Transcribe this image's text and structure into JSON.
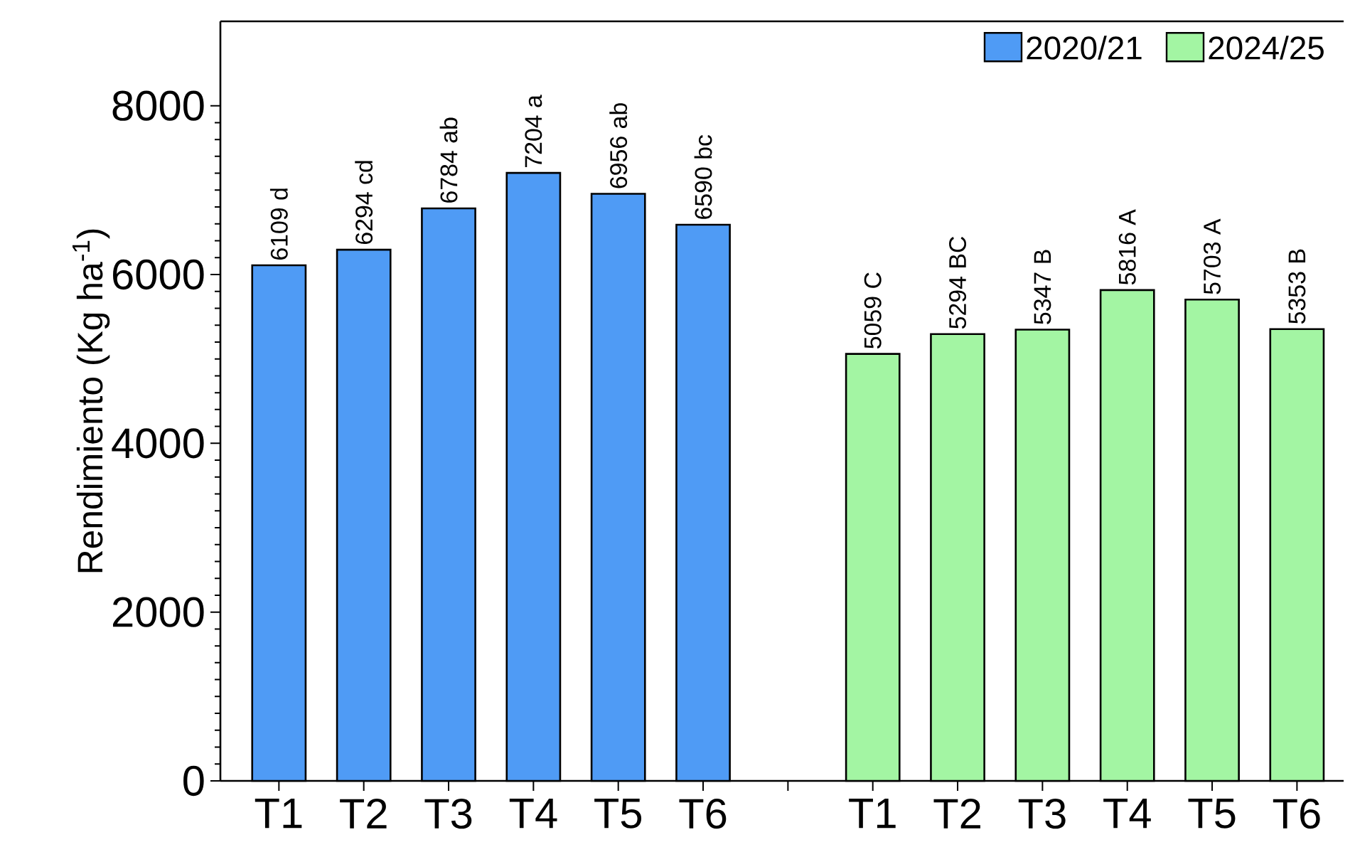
{
  "chart_data": {
    "type": "bar",
    "ylabel": "Rendimiento (Kg ha$^{-1}$)",
    "categories": [
      "T1",
      "T2",
      "T3",
      "T4",
      "T5",
      "T6",
      null,
      "T1",
      "T2",
      "T3",
      "T4",
      "T5",
      "T6"
    ],
    "series": [
      {
        "name": "2020/21",
        "color": "#4f9bf5",
        "values": [
          6109,
          6294,
          6784,
          7204,
          6956,
          6590,
          null,
          null,
          null,
          null,
          null,
          null,
          null
        ],
        "value_labels": [
          "6109 d",
          "6294 cd",
          "6784 ab",
          "7204 a",
          "6956 ab",
          "6590 bc",
          null,
          null,
          null,
          null,
          null,
          null,
          null
        ]
      },
      {
        "name": "2024/25",
        "color": "#a3f5a3",
        "values": [
          null,
          null,
          null,
          null,
          null,
          null,
          null,
          5059,
          5294,
          5347,
          5816,
          5703,
          5353
        ],
        "value_labels": [
          null,
          null,
          null,
          null,
          null,
          null,
          null,
          "5059 C",
          "5294 BC",
          "5347 B",
          "5816 A",
          "5703 A",
          "5353 B"
        ]
      }
    ],
    "ylim": [
      0,
      9000
    ],
    "yticks": [
      0,
      2000,
      4000,
      6000,
      8000
    ],
    "grid": false,
    "legend": "top right"
  }
}
